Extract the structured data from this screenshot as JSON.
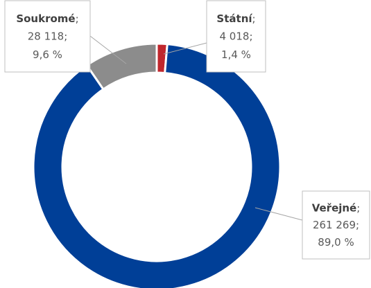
{
  "chart_data": {
    "type": "donut",
    "categories": [
      "Státní",
      "Veřejné",
      "Soukromé"
    ],
    "values": [
      4018,
      261269,
      28118
    ],
    "value_labels": [
      "4 018",
      "261 269",
      "28 118"
    ],
    "percentages": [
      1.4,
      89.0,
      9.6
    ],
    "percentage_labels": [
      "1,4 %",
      "89,0 %",
      "9,6 %"
    ],
    "label_separator": ";",
    "colors": [
      "#c0272d",
      "#003f97",
      "#8c8c8c"
    ]
  }
}
